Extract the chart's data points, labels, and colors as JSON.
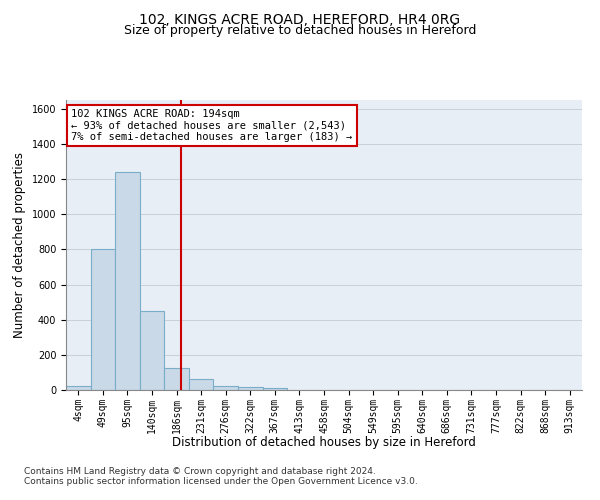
{
  "title": "102, KINGS ACRE ROAD, HEREFORD, HR4 0RG",
  "subtitle": "Size of property relative to detached houses in Hereford",
  "xlabel": "Distribution of detached houses by size in Hereford",
  "ylabel": "Number of detached properties",
  "categories": [
    "4sqm",
    "49sqm",
    "95sqm",
    "140sqm",
    "186sqm",
    "231sqm",
    "276sqm",
    "322sqm",
    "367sqm",
    "413sqm",
    "458sqm",
    "504sqm",
    "549sqm",
    "595sqm",
    "640sqm",
    "686sqm",
    "731sqm",
    "777sqm",
    "822sqm",
    "868sqm",
    "913sqm"
  ],
  "values": [
    22,
    805,
    1238,
    452,
    128,
    62,
    25,
    18,
    14,
    0,
    0,
    0,
    0,
    0,
    0,
    0,
    0,
    0,
    0,
    0,
    0
  ],
  "bar_color": "#c9d9e8",
  "bar_edge_color": "#7aaec8",
  "bar_edge_width": 0.8,
  "property_line_color": "#cc0000",
  "annotation_line1": "102 KINGS ACRE ROAD: 194sqm",
  "annotation_line2": "← 93% of detached houses are smaller (2,543)",
  "annotation_line3": "7% of semi-detached houses are larger (183) →",
  "annotation_box_color": "#cc0000",
  "ylim": [
    0,
    1650
  ],
  "yticks": [
    0,
    200,
    400,
    600,
    800,
    1000,
    1200,
    1400,
    1600
  ],
  "grid_color": "#c8d0dc",
  "bg_color": "#e8eef5",
  "footnote1": "Contains HM Land Registry data © Crown copyright and database right 2024.",
  "footnote2": "Contains public sector information licensed under the Open Government Licence v3.0.",
  "title_fontsize": 10,
  "subtitle_fontsize": 9,
  "xlabel_fontsize": 8.5,
  "ylabel_fontsize": 8.5,
  "tick_fontsize": 7,
  "footnote_fontsize": 6.5,
  "annotation_fontsize": 7.5
}
